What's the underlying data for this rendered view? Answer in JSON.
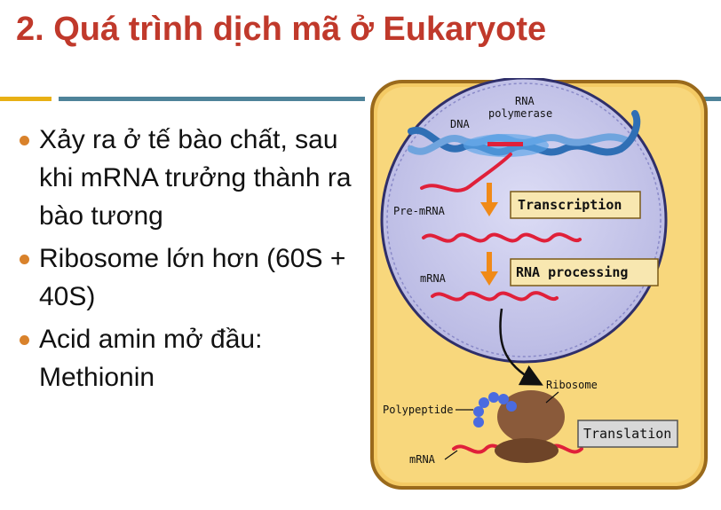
{
  "slide": {
    "title": "2. Quá trình dịch mã ở Eukaryote",
    "bullets": [
      "Xảy ra ở tế bào chất, sau khi mRNA trưởng thành  ra bào tương",
      "Ribosome lớn hơn (60S + 40S)",
      "Acid amin mở đầu: Methionin"
    ]
  },
  "figure": {
    "labels": {
      "dna": "DNA",
      "rna_polymerase_1": "RNA",
      "rna_polymerase_2": "polymerase",
      "pre_mrna": "Pre-mRNA",
      "mrna_nucleus": "mRNA",
      "ribosome": "Ribosome",
      "polypeptide": "Polypeptide",
      "mrna_cytoplasm": "mRNA"
    },
    "steps": {
      "transcription": "Transcription",
      "rna_processing": "RNA processing",
      "translation": "Translation"
    }
  },
  "colors": {
    "title": "#c0392b",
    "bullet_dot": "#d9822b",
    "cell": "#f5cf6b",
    "nucleus": "#c9c9ec",
    "rna_strand": "#e0203a",
    "step_box": "#f8e7b0",
    "arrow": "#f08a18"
  }
}
